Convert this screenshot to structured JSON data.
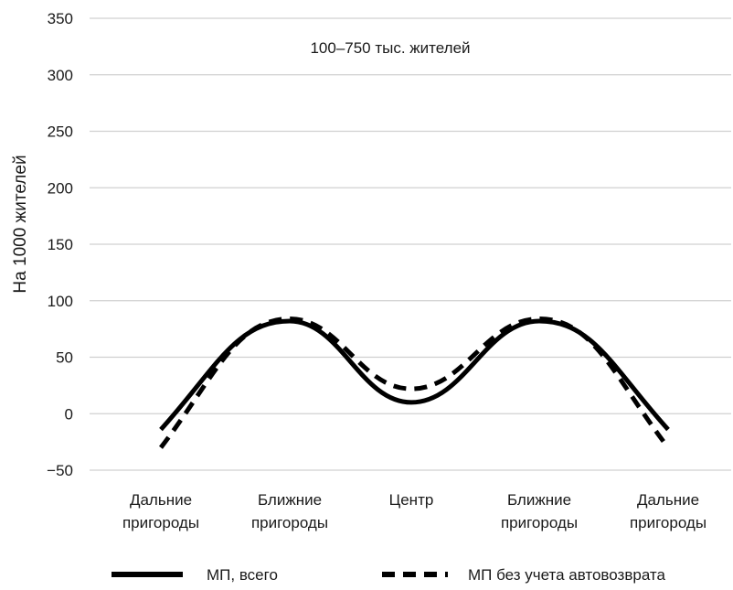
{
  "chart_data": {
    "type": "line",
    "subtitle": "100–750 тыс. жителей",
    "ylabel": "На 1000 жителей",
    "ylim": [
      -50,
      350
    ],
    "yticks": [
      -50,
      0,
      50,
      100,
      150,
      200,
      250,
      300,
      350
    ],
    "yticks_labels": [
      "−50",
      "0",
      "50",
      "100",
      "150",
      "200",
      "250",
      "300",
      "350"
    ],
    "categories": [
      [
        "Дальние",
        "пригороды"
      ],
      [
        "Ближние",
        "пригороды"
      ],
      [
        "Центр"
      ],
      [
        "Ближние",
        "пригороды"
      ],
      [
        "Дальние",
        "пригороды"
      ]
    ],
    "grid": true,
    "legend_position": "bottom",
    "series": [
      {
        "name": "МП, всего",
        "style": "solid",
        "color": "#000000",
        "values": [
          -14,
          82,
          10,
          82,
          -14
        ]
      },
      {
        "name": "МП без учета автовозврата",
        "style": "dashed",
        "color": "#000000",
        "values": [
          -30,
          84,
          22,
          84,
          -30
        ]
      }
    ]
  }
}
